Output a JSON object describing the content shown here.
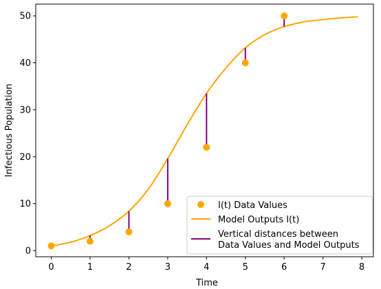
{
  "chart_data": {
    "type": "scatter",
    "title": "",
    "xlabel": "Time",
    "ylabel": "Infectious Population",
    "xlim": [
      -0.4,
      8.3
    ],
    "ylim": [
      -1.3,
      52.5
    ],
    "xticks": [
      0,
      1,
      2,
      3,
      4,
      5,
      6,
      7,
      8
    ],
    "yticks": [
      0,
      10,
      20,
      30,
      40,
      50
    ],
    "grid": false,
    "legend_position": "bottom-right",
    "data_points": {
      "name": "I(t) Data Values",
      "color": "#ffa500",
      "x": [
        0,
        1,
        2,
        3,
        4,
        5,
        6
      ],
      "y": [
        1,
        2,
        4,
        10,
        22,
        40,
        50
      ]
    },
    "model_curve": {
      "name": "Model Outputs I(t)",
      "color": "#ffa500",
      "x": [
        0,
        0.5,
        1,
        1.5,
        2,
        2.5,
        3,
        3.5,
        4,
        4.5,
        5,
        5.5,
        6,
        6.5,
        7,
        7.5,
        7.9
      ],
      "y": [
        1.0,
        1.8,
        3.2,
        5.3,
        8.4,
        13.1,
        19.6,
        26.8,
        33.5,
        38.9,
        43.2,
        46.0,
        47.7,
        48.7,
        49.2,
        49.6,
        49.8
      ]
    },
    "residuals": {
      "name_line1": "Vertical distances between",
      "name_line2": "Data Values and Model Outputs",
      "color": "#800080",
      "model_at_data_x": [
        1.0,
        3.2,
        8.4,
        19.6,
        33.5,
        43.2,
        47.7
      ]
    }
  }
}
